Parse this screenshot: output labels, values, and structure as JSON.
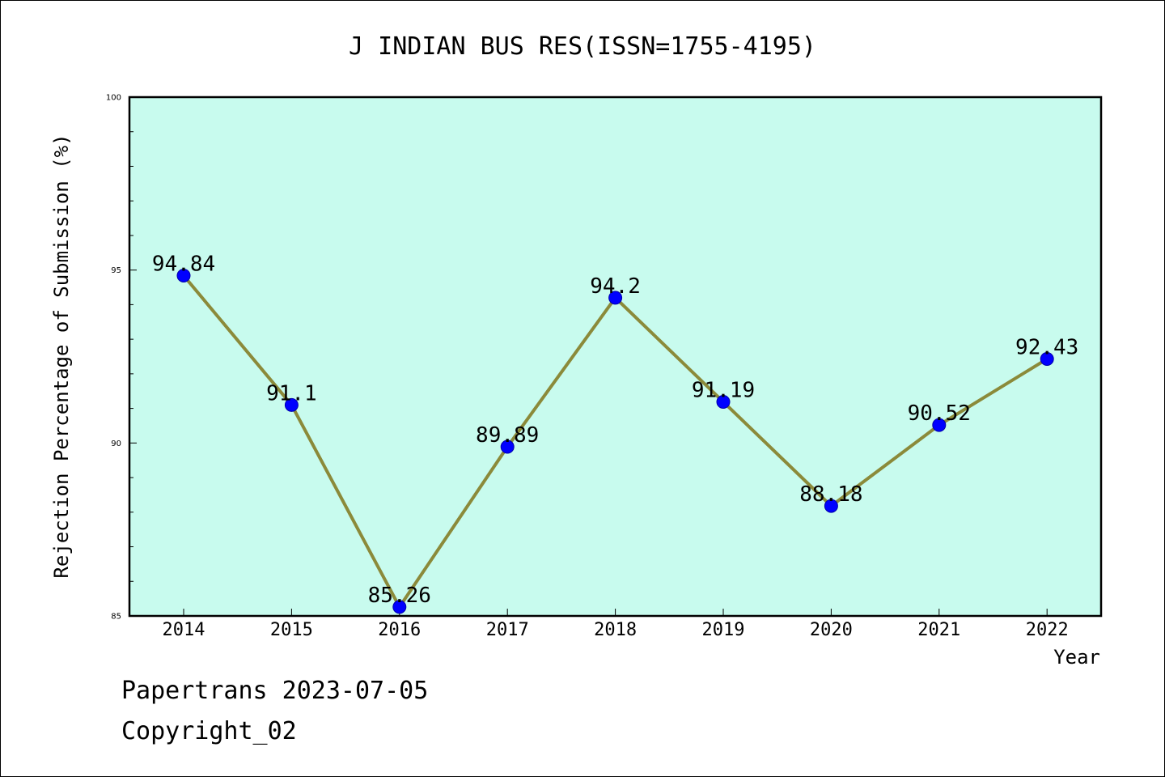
{
  "chart_data": {
    "type": "line",
    "title": "J INDIAN BUS RES(ISSN=1755-4195)",
    "xlabel": "Year",
    "ylabel": "Rejection Percentage of Submission (%)",
    "categories": [
      "2014",
      "2015",
      "2016",
      "2017",
      "2018",
      "2019",
      "2020",
      "2021",
      "2022"
    ],
    "values": [
      94.84,
      91.1,
      85.26,
      89.89,
      94.2,
      91.19,
      88.18,
      90.52,
      92.43
    ],
    "data_labels": [
      "94.84",
      "91.1",
      "85.26",
      "89.89",
      "94.2",
      "91.19",
      "88.18",
      "90.52",
      "92.43"
    ],
    "ylim": [
      85,
      100
    ],
    "yticks": [
      "85",
      "90",
      "95",
      "100"
    ],
    "grid": false,
    "colors": {
      "plot_background": "#c8fbee",
      "line": "#8b8a3a",
      "marker": "#0000ff"
    }
  },
  "footer": {
    "line1": "Papertrans 2023-07-05",
    "line2": "Copyright_02"
  }
}
